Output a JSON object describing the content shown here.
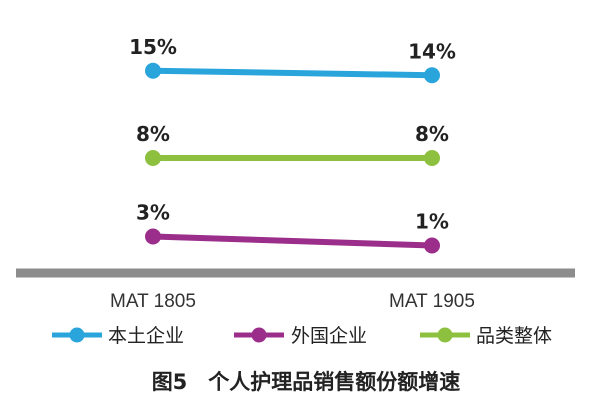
{
  "chart_data": {
    "type": "line",
    "categories": [
      "MAT 1805",
      "MAT 1905"
    ],
    "series": [
      {
        "name": "本土企业",
        "values": [
          15,
          14
        ],
        "labels": [
          "15%",
          "14%"
        ],
        "color": "#29a5dc"
      },
      {
        "name": "外国企业",
        "values": [
          3,
          1
        ],
        "labels": [
          "3%",
          "1%"
        ],
        "color": "#9b2e8a"
      },
      {
        "name": "品类整体",
        "values": [
          8,
          8
        ],
        "labels": [
          "8%",
          "8%"
        ],
        "color": "#8cc03e"
      }
    ],
    "display_rows": [
      {
        "series": 0,
        "values": [
          15,
          14
        ]
      },
      {
        "series": 2,
        "values": [
          8,
          8
        ]
      },
      {
        "series": 1,
        "values": [
          3,
          1
        ]
      }
    ],
    "axis_color": "#8c8c8c",
    "legend_position": "bottom",
    "grid": false,
    "caption": "图5　个人护理品销售额份额增速"
  }
}
